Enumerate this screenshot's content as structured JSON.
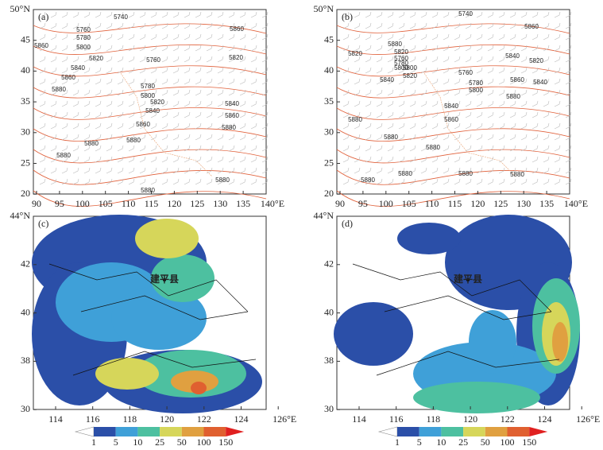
{
  "panels": [
    {
      "label": "(a)",
      "contour_labels": [
        "5740",
        "5760",
        "5780",
        "5800",
        "5860",
        "5820",
        "5760",
        "5840",
        "5860",
        "5880",
        "5780",
        "5800",
        "5820",
        "5840",
        "5860",
        "5880",
        "5880",
        "5880",
        "5840",
        "5860",
        "5880",
        "5820",
        "5860",
        "5880",
        "5880"
      ]
    },
    {
      "label": "(b)",
      "contour_labels": [
        "5740",
        "5860",
        "5820",
        "5880",
        "5760",
        "5780",
        "5800",
        "5840",
        "5800",
        "5820",
        "5840",
        "5820",
        "5860",
        "5840",
        "5880",
        "5840",
        "5860",
        "5880",
        "5880",
        "5880",
        "5880",
        "5880",
        "5880",
        "5880",
        "5760",
        "5780",
        "5800",
        "5820"
      ]
    },
    {
      "label": "(c)",
      "place": "建平县"
    },
    {
      "label": "(d)",
      "place": "建平县"
    }
  ],
  "top_axes": {
    "x_ticks": [
      "90",
      "95",
      "100",
      "105",
      "110",
      "115",
      "120",
      "125",
      "130",
      "135",
      "140°E"
    ],
    "y_ticks": [
      "50°N",
      "45",
      "40",
      "35",
      "30",
      "25",
      "20"
    ]
  },
  "bottom_axes": {
    "x_ticks": [
      "114",
      "116",
      "118",
      "120",
      "122",
      "124",
      "126°E"
    ],
    "y_ticks": [
      "44°N",
      "42",
      "40",
      "38",
      "30"
    ]
  },
  "colorbar": {
    "labels": [
      "1",
      "5",
      "10",
      "25",
      "50",
      "100",
      "150"
    ]
  }
}
